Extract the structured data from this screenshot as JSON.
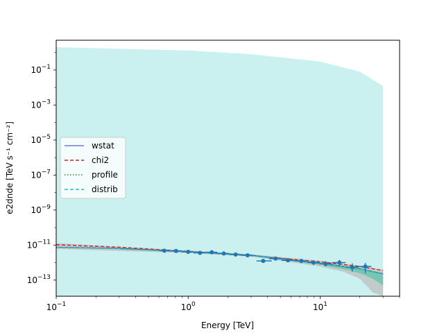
{
  "chart_data": {
    "type": "line",
    "title": "",
    "xlabel": "Energy [TeV]",
    "ylabel": "e2dnde [TeV s⁻¹ cm⁻²]",
    "xscale": "log",
    "yscale": "log",
    "xlim": [
      0.1,
      40
    ],
    "ylim": [
      1.2e-14,
      5
    ],
    "grid": false,
    "legend_position": "center-left",
    "x_ticks": [
      {
        "value": 0.1,
        "base": "10",
        "exp": "−1"
      },
      {
        "value": 1,
        "base": "10",
        "exp": "0"
      },
      {
        "value": 10,
        "base": "10",
        "exp": "1"
      }
    ],
    "y_ticks": [
      {
        "value": 1e-13,
        "base": "10",
        "exp": "−13"
      },
      {
        "value": 1e-11,
        "base": "10",
        "exp": "−11"
      },
      {
        "value": 1e-09,
        "base": "10",
        "exp": "−9"
      },
      {
        "value": 1e-07,
        "base": "10",
        "exp": "−7"
      },
      {
        "value": 1e-05,
        "base": "10",
        "exp": "−5"
      },
      {
        "value": 0.001,
        "base": "10",
        "exp": "−3"
      },
      {
        "value": 0.1,
        "base": "10",
        "exp": "−1"
      }
    ],
    "series": [
      {
        "name": "wstat",
        "style": "solid",
        "color": "#3333cc",
        "x": [
          0.1,
          0.3,
          1,
          3,
          10,
          20,
          30
        ],
        "y": [
          7.5e-12,
          6.5e-12,
          4.2e-12,
          2.6e-12,
          9e-13,
          4.5e-13,
          2.3e-13
        ]
      },
      {
        "name": "chi2",
        "style": "dashed",
        "color": "#e41a1c",
        "x": [
          0.1,
          0.3,
          1,
          3,
          10,
          20,
          30
        ],
        "y": [
          1.05e-11,
          7.5e-12,
          4.3e-12,
          2.5e-12,
          1.1e-12,
          6e-13,
          3.5e-13
        ]
      },
      {
        "name": "profile",
        "style": "dotted",
        "color": "#1a9e1a",
        "x": [
          0.1,
          0.3,
          1,
          3,
          10,
          20,
          30
        ],
        "y": [
          7.5e-12,
          6.5e-12,
          4.2e-12,
          2.6e-12,
          9e-13,
          4.5e-13,
          2.3e-13
        ]
      },
      {
        "name": "distrib",
        "style": "dashed",
        "color": "#17becf",
        "x": [
          0.1,
          0.3,
          1,
          3,
          10,
          20,
          30
        ],
        "y": [
          7.3e-12,
          6.3e-12,
          4.1e-12,
          2.55e-12,
          8.8e-13,
          4.4e-13,
          2.2e-13
        ]
      }
    ],
    "bands": [
      {
        "color": "#a8e6e6",
        "x": [
          0.1,
          1,
          3,
          10,
          20,
          30
        ],
        "upper": [
          2,
          1.3,
          0.8,
          0.3,
          0.08,
          0.012
        ],
        "lower": [
          1.2e-14,
          1.2e-14,
          1.2e-14,
          1.2e-14,
          1.2e-14,
          1.2e-14
        ]
      },
      {
        "color": "#bfbfbf",
        "x": [
          0.1,
          1,
          3,
          10,
          15,
          20,
          25,
          30
        ],
        "upper": [
          1.3e-11,
          5e-12,
          3e-12,
          1.3e-12,
          9e-13,
          6.5e-13,
          5e-13,
          4e-13
        ],
        "lower": [
          6e-12,
          3.5e-12,
          2.2e-12,
          6e-13,
          3e-13,
          1.2e-13,
          2e-14,
          1.2e-14
        ]
      },
      {
        "color": "#5ec4a8",
        "x": [
          0.3,
          1,
          3,
          10,
          15,
          20,
          25,
          30
        ],
        "upper": [
          6.8e-12,
          4.7e-12,
          2.9e-12,
          1.05e-12,
          6.5e-13,
          4.5e-13,
          3e-13,
          2e-13
        ],
        "lower": [
          5.6e-12,
          3.9e-12,
          2.4e-12,
          7.5e-13,
          4.2e-13,
          2.5e-13,
          1.2e-13,
          5e-14
        ]
      }
    ],
    "points": [
      {
        "x": 0.66,
        "y": 4.8e-12,
        "xlo": 0.6,
        "xhi": 0.73,
        "ylo": 4.3e-12,
        "yhi": 5.3e-12
      },
      {
        "x": 0.81,
        "y": 4.6e-12,
        "xlo": 0.73,
        "xhi": 0.9,
        "ylo": 4.1e-12,
        "yhi": 5.1e-12
      },
      {
        "x": 1.0,
        "y": 4.1e-12,
        "xlo": 0.9,
        "xhi": 1.1,
        "ylo": 3.6e-12,
        "yhi": 4.6e-12
      },
      {
        "x": 1.23,
        "y": 3.6e-12,
        "xlo": 1.1,
        "xhi": 1.35,
        "ylo": 3.1e-12,
        "yhi": 4.1e-12
      },
      {
        "x": 1.51,
        "y": 3.9e-12,
        "xlo": 1.35,
        "xhi": 1.66,
        "ylo": 3.4e-12,
        "yhi": 4.4e-12
      },
      {
        "x": 1.86,
        "y": 3.3e-12,
        "xlo": 1.66,
        "xhi": 2.04,
        "ylo": 2.9e-12,
        "yhi": 3.8e-12
      },
      {
        "x": 2.29,
        "y": 2.9e-12,
        "xlo": 2.04,
        "xhi": 2.51,
        "ylo": 2.5e-12,
        "yhi": 3.3e-12
      },
      {
        "x": 2.82,
        "y": 2.6e-12,
        "xlo": 2.51,
        "xhi": 3.09,
        "ylo": 2.2e-12,
        "yhi": 3e-12
      },
      {
        "x": 3.7,
        "y": 1.25e-12,
        "xlo": 3.3,
        "xhi": 4.3,
        "ylo": 1e-12,
        "yhi": 1.6e-12
      },
      {
        "x": 4.6,
        "y": 1.7e-12,
        "xlo": 4.1,
        "xhi": 5.2,
        "ylo": 1.4e-12,
        "yhi": 2e-12
      },
      {
        "x": 5.7,
        "y": 1.35e-12,
        "xlo": 5.1,
        "xhi": 6.4,
        "ylo": 1.1e-12,
        "yhi": 1.7e-12
      },
      {
        "x": 7.2,
        "y": 1.25e-12,
        "xlo": 6.4,
        "xhi": 8.0,
        "ylo": 1e-12,
        "yhi": 1.6e-12
      },
      {
        "x": 8.9,
        "y": 1e-12,
        "xlo": 8.0,
        "xhi": 9.9,
        "ylo": 7.5e-13,
        "yhi": 1.35e-12
      },
      {
        "x": 11.0,
        "y": 8.5e-13,
        "xlo": 9.9,
        "xhi": 12.3,
        "ylo": 6e-13,
        "yhi": 1.2e-12
      },
      {
        "x": 14.0,
        "y": 1e-12,
        "xlo": 12.3,
        "xhi": 15.6,
        "ylo": 6e-13,
        "yhi": 1.4e-12
      },
      {
        "x": 17.5,
        "y": 5.5e-13,
        "xlo": 15.6,
        "xhi": 19.5,
        "ylo": 3e-13,
        "yhi": 9e-13
      },
      {
        "x": 22.0,
        "y": 6e-13,
        "xlo": 19.5,
        "xhi": 24.5,
        "ylo": 2.5e-13,
        "yhi": 9.5e-13
      }
    ],
    "point_color": "#1f77b4"
  }
}
